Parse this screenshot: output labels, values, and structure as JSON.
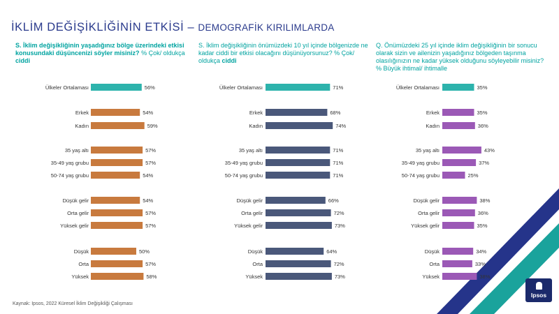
{
  "title": "İKLİM DEĞİŞİKLİĞİNİN ETKİSİ",
  "title_sep": "–",
  "subtitle": "DEMOGRAFİK KIRILIMLARDA",
  "questions": [
    {
      "text": "S. İklim değişikliğinin yaşadığınız bölge üzerindeki etkisi konusundaki düşüncenizi söyler misiniz?",
      "measure": "% Çok/ oldukça",
      "measure_bold": "ciddi"
    },
    {
      "text": "S. İklim değişikliğinin önümüzdeki 10 yıl içinde bölgenizde ne kadar ciddi bir etkisi olacağını düşünüyorsunuz?",
      "measure": "% Çok/ oldukça",
      "measure_bold": "ciddi"
    },
    {
      "text": "Q. Önümüzdeki 25 yıl içinde iklim değişikliğinin bir sonucu olarak sizin ve ailenizin yaşadığınız bölgeden taşınma olasılığınızın ne kadar yüksek olduğunu söyleyebilir misiniz?",
      "measure": "% Büyük ihtimal/ ihtimalle",
      "measure_bold": ""
    }
  ],
  "source": "Kaynak: Ipsos, 2022 Küresel İklim Değişikliği Çalışması",
  "logo_text": "Ipsos",
  "colors": {
    "title": "#2a3a8c",
    "question": "#00a3a0",
    "average_bar": "#2db3ac",
    "panel1_bar": "#c87a3e",
    "panel2_bar": "#4a587a",
    "panel3_bar": "#9b59b6",
    "deco_navy": "#25348a",
    "deco_teal": "#1aa39c"
  },
  "chart_data": [
    {
      "type": "bar",
      "orientation": "horizontal",
      "categories": [
        "Ülkeler Ortalaması",
        "Erkek",
        "Kadın",
        "35 yaş altı",
        "35-49 yaş grubu",
        "50-74 yaş grubu",
        "Düşük gelir",
        "Orta gelir",
        "Yüksek gelir",
        "Düşük",
        "Orta",
        "Yüksek"
      ],
      "values": [
        56,
        54,
        59,
        57,
        57,
        54,
        54,
        57,
        57,
        50,
        57,
        58
      ],
      "value_suffix": "%",
      "xlim": [
        0,
        100
      ]
    },
    {
      "type": "bar",
      "orientation": "horizontal",
      "categories": [
        "Ülkeler Ortalaması",
        "Erkek",
        "Kadın",
        "35 yaş altı",
        "35-49 yaş grubu",
        "50-74 yaş grubu",
        "Düşük gelir",
        "Orta gelir",
        "Yüksek gelir",
        "Düşük",
        "Orta",
        "Yüksek"
      ],
      "values": [
        71,
        68,
        74,
        71,
        71,
        71,
        66,
        72,
        73,
        64,
        72,
        73
      ],
      "value_suffix": "%",
      "xlim": [
        0,
        100
      ]
    },
    {
      "type": "bar",
      "orientation": "horizontal",
      "categories": [
        "Ülkeler Ortalaması",
        "Erkek",
        "Kadın",
        "35 yaş altı",
        "35-49 yaş grubu",
        "50-74 yaş grubu",
        "Düşük gelir",
        "Orta gelir",
        "Yüksek gelir",
        "Düşük",
        "Orta",
        "Yüksek"
      ],
      "values": [
        35,
        35,
        36,
        43,
        37,
        25,
        38,
        36,
        35,
        34,
        33,
        38
      ],
      "value_suffix": "%",
      "xlim": [
        0,
        100
      ]
    }
  ]
}
